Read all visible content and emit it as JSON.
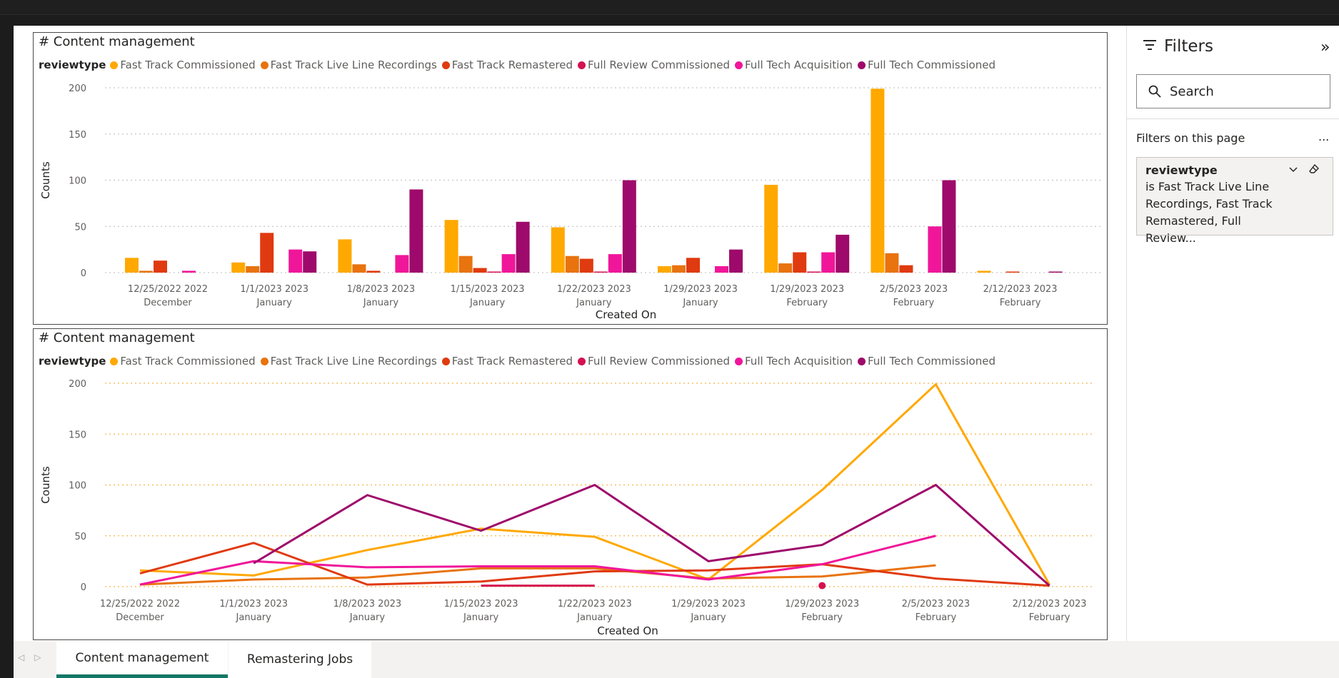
{
  "filters": {
    "title": "Filters",
    "search_placeholder": "Search",
    "section_label": "Filters on this page",
    "more_label": "...",
    "card": {
      "field": "reviewtype",
      "description": "is Fast Track Live Line Recordings, Fast Track Remastered, Full Review..."
    }
  },
  "tabs": [
    {
      "label": "Content management",
      "active": true
    },
    {
      "label": "Remastering Jobs",
      "active": false
    }
  ],
  "legend": {
    "title": "reviewtype",
    "items": [
      {
        "name": "Fast Track Commissioned",
        "color": "#FFA800"
      },
      {
        "name": "Fast Track Live Line Recordings",
        "color": "#E8730F"
      },
      {
        "name": "Fast Track Remastered",
        "color": "#E03A10"
      },
      {
        "name": "Full Review Commissioned",
        "color": "#D4124F"
      },
      {
        "name": "Full Tech Acquisition",
        "color": "#F0169A"
      },
      {
        "name": "Full Tech Commissioned",
        "color": "#9E0A6B"
      }
    ]
  },
  "chart_data": [
    {
      "type": "bar",
      "title": "# Content management",
      "xlabel": "Created On",
      "ylabel": "Counts",
      "ylim": [
        0,
        200
      ],
      "yticks": [
        0,
        50,
        100,
        150,
        200
      ],
      "grid": true,
      "legend_position": "top-left",
      "categories": [
        [
          "12/25/2022 2022",
          "December"
        ],
        [
          "1/1/2023 2023",
          "January"
        ],
        [
          "1/8/2023 2023",
          "January"
        ],
        [
          "1/15/2023 2023",
          "January"
        ],
        [
          "1/22/2023 2023",
          "January"
        ],
        [
          "1/29/2023 2023",
          "January"
        ],
        [
          "1/29/2023 2023",
          "February"
        ],
        [
          "2/5/2023 2023",
          "February"
        ],
        [
          "2/12/2023 2023",
          "February"
        ]
      ],
      "series": [
        {
          "name": "Fast Track Commissioned",
          "values": [
            16,
            11,
            36,
            57,
            49,
            7,
            95,
            199,
            2
          ]
        },
        {
          "name": "Fast Track Live Line Recordings",
          "values": [
            2,
            7,
            9,
            18,
            18,
            8,
            10,
            21,
            null
          ]
        },
        {
          "name": "Fast Track Remastered",
          "values": [
            13,
            43,
            2,
            5,
            15,
            16,
            22,
            8,
            1
          ]
        },
        {
          "name": "Full Review Commissioned",
          "values": [
            null,
            null,
            null,
            1,
            1,
            null,
            1,
            null,
            null
          ]
        },
        {
          "name": "Full Tech Acquisition",
          "values": [
            2,
            25,
            19,
            20,
            20,
            7,
            22,
            50,
            null
          ]
        },
        {
          "name": "Full Tech Commissioned",
          "values": [
            null,
            23,
            90,
            55,
            100,
            25,
            41,
            100,
            1
          ]
        }
      ]
    },
    {
      "type": "line",
      "title": "# Content management",
      "xlabel": "Created On",
      "ylabel": "Counts",
      "ylim": [
        0,
        200
      ],
      "yticks": [
        0,
        50,
        100,
        150,
        200
      ],
      "grid": true,
      "legend_position": "top-left",
      "categories": [
        [
          "12/25/2022 2022",
          "December"
        ],
        [
          "1/1/2023 2023",
          "January"
        ],
        [
          "1/8/2023 2023",
          "January"
        ],
        [
          "1/15/2023 2023",
          "January"
        ],
        [
          "1/22/2023 2023",
          "January"
        ],
        [
          "1/29/2023 2023",
          "January"
        ],
        [
          "1/29/2023 2023",
          "February"
        ],
        [
          "2/5/2023 2023",
          "February"
        ],
        [
          "2/12/2023 2023",
          "February"
        ]
      ],
      "series": [
        {
          "name": "Fast Track Commissioned",
          "values": [
            16,
            11,
            36,
            57,
            49,
            7,
            95,
            199,
            2
          ]
        },
        {
          "name": "Fast Track Live Line Recordings",
          "values": [
            2,
            7,
            9,
            18,
            18,
            8,
            10,
            21,
            null
          ]
        },
        {
          "name": "Fast Track Remastered",
          "values": [
            13,
            43,
            2,
            5,
            15,
            16,
            22,
            8,
            1
          ]
        },
        {
          "name": "Full Review Commissioned",
          "values": [
            null,
            null,
            null,
            1,
            1,
            null,
            1,
            null,
            null
          ]
        },
        {
          "name": "Full Tech Acquisition",
          "values": [
            2,
            25,
            19,
            20,
            20,
            7,
            22,
            50,
            null
          ]
        },
        {
          "name": "Full Tech Commissioned",
          "values": [
            null,
            23,
            90,
            55,
            100,
            25,
            41,
            100,
            1
          ]
        }
      ]
    }
  ]
}
